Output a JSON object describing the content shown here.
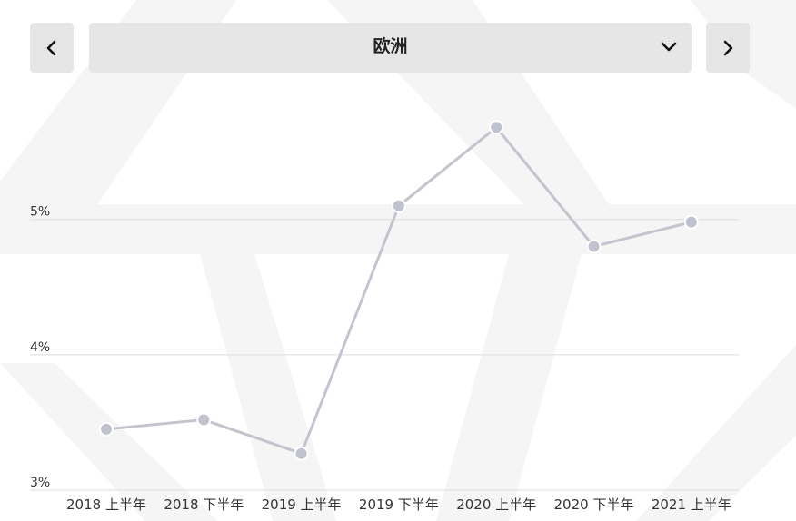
{
  "selector": {
    "prev_icon": "chevron-left-icon",
    "region": "欧洲",
    "dropdown_icon": "chevron-down-icon",
    "next_icon": "chevron-right-icon"
  },
  "chart_data": {
    "type": "line",
    "categories": [
      "2018 上半年",
      "2018 下半年",
      "2019 上半年",
      "2019 下半年",
      "2020 上半年",
      "2020 下半年",
      "2021 上半年"
    ],
    "values": [
      3.45,
      3.52,
      3.27,
      5.1,
      5.68,
      4.8,
      4.98
    ],
    "yticks": [
      {
        "value": 3,
        "label": "3%"
      },
      {
        "value": 4,
        "label": "4%"
      },
      {
        "value": 5,
        "label": "5%"
      }
    ],
    "ylim": [
      3,
      5.95
    ],
    "grid": true,
    "colors": {
      "line": "#c4c4cf",
      "point": "#c0c2cf",
      "grid": "#dedede"
    }
  }
}
